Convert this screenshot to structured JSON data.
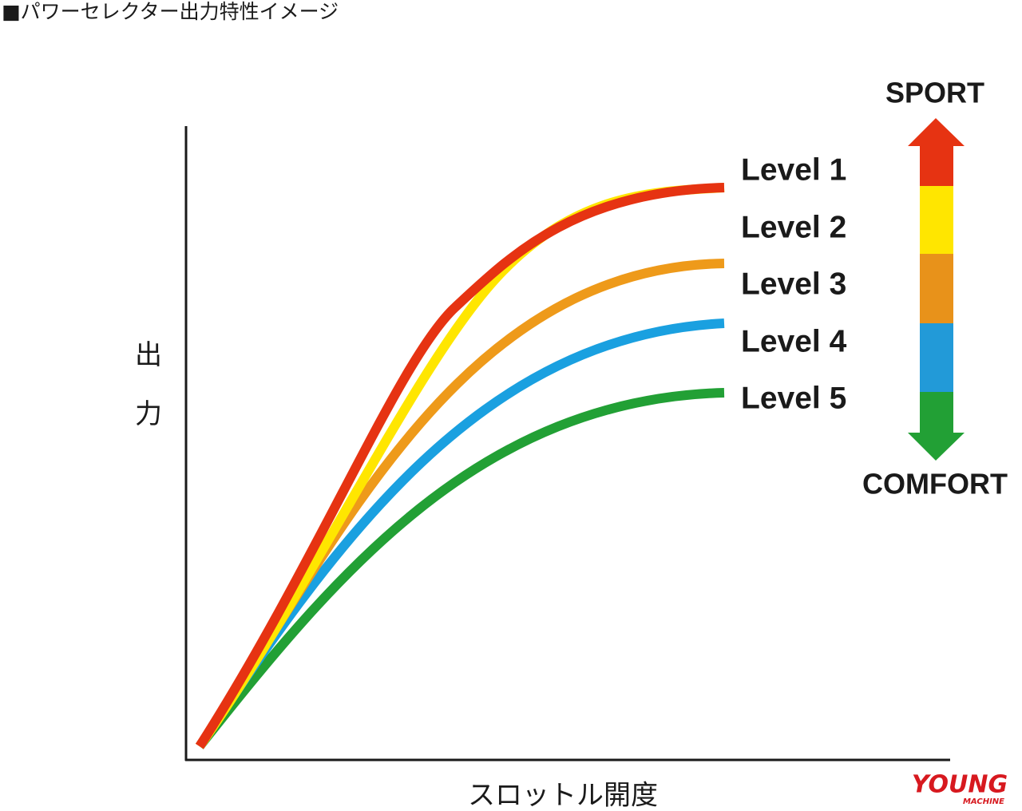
{
  "header": {
    "title": "■パワーセレクター出力特性イメージ"
  },
  "axes": {
    "y_label": "出力",
    "x_label": "スロットル開度"
  },
  "levels": [
    "Level 1",
    "Level 2",
    "Level 3",
    "Level 4",
    "Level 5"
  ],
  "scale": {
    "top": "SPORT",
    "bottom": "COMFORT"
  },
  "logo": {
    "name": "YOUNG",
    "sub": "MACHINE"
  }
}
